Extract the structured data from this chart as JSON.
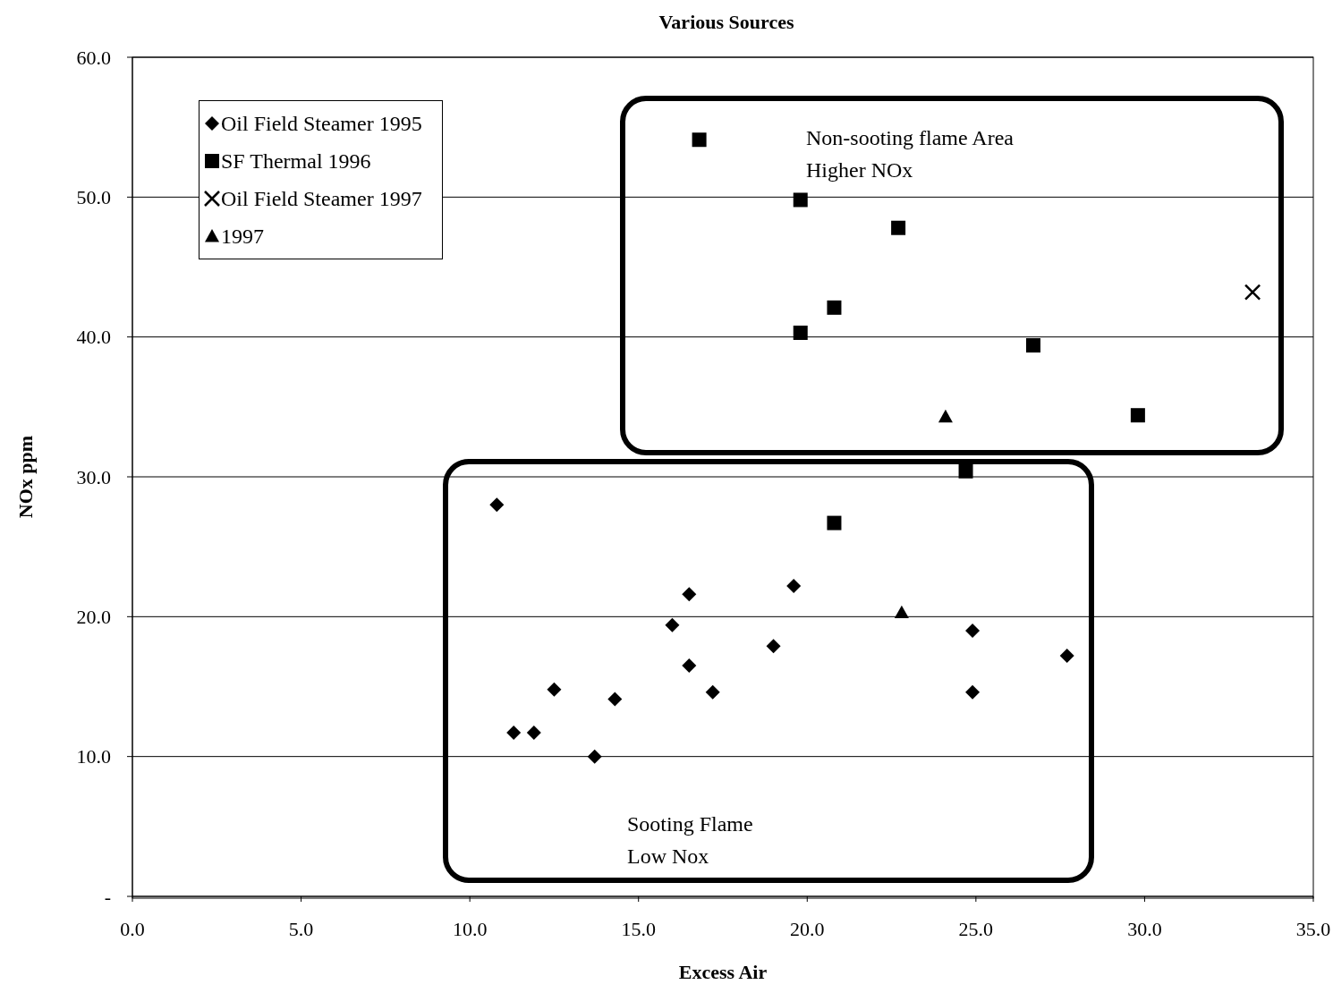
{
  "chart_data": {
    "type": "scatter",
    "title": "Various Sources",
    "xlabel": "Excess Air",
    "ylabel": "NOx ppm",
    "xlim": [
      0,
      35
    ],
    "xticks": [
      {
        "value": 0,
        "label": "0.0"
      },
      {
        "value": 5,
        "label": "5.0"
      },
      {
        "value": 10,
        "label": "10.0"
      },
      {
        "value": 15,
        "label": "15.0"
      },
      {
        "value": 20,
        "label": "20.0"
      },
      {
        "value": 25,
        "label": "25.0"
      },
      {
        "value": 30,
        "label": "30.0"
      },
      {
        "value": 35,
        "label": "35.0"
      }
    ],
    "ylim": [
      0,
      60
    ],
    "yticks": [
      {
        "value": 0,
        "label": "-"
      },
      {
        "value": 10,
        "label": "10.0"
      },
      {
        "value": 20,
        "label": "20.0"
      },
      {
        "value": 30,
        "label": "30.0"
      },
      {
        "value": 40,
        "label": "40.0"
      },
      {
        "value": 50,
        "label": "50.0"
      },
      {
        "value": 60,
        "label": "60.0"
      }
    ],
    "grid": "y",
    "legend": "top left",
    "annotations": [
      "Non-sooting flame Area\nHigher NOx",
      "Sooting Flame\nLow Nox"
    ],
    "series": [
      {
        "name": "Oil Field Steamer 1995",
        "color": "#000000",
        "marker": "diamond",
        "x": [
          10.8,
          11.3,
          11.9,
          12.5,
          13.7,
          14.3,
          16.0,
          16.5,
          16.5,
          17.2,
          19.0,
          19.6,
          24.9,
          24.9,
          27.7
        ],
        "values": [
          28.0,
          11.7,
          11.7,
          14.8,
          10.0,
          14.1,
          19.4,
          21.6,
          16.5,
          14.6,
          17.9,
          22.2,
          19.0,
          14.6,
          17.2
        ]
      },
      {
        "name": "SF Thermal 1996",
        "color": "#000000",
        "marker": "square",
        "x": [
          16.8,
          19.8,
          22.7,
          20.8,
          19.8,
          26.7,
          29.8,
          24.7,
          20.8
        ],
        "values": [
          54.1,
          49.8,
          47.8,
          42.1,
          40.3,
          39.4,
          34.4,
          30.4,
          26.7
        ]
      },
      {
        "name": "Oil Field Steamer 1997",
        "color": "#000000",
        "marker": "cross",
        "x": [
          33.2
        ],
        "values": [
          43.2
        ]
      },
      {
        "name": "1997",
        "color": "#000000",
        "marker": "triangle",
        "x": [
          24.1,
          22.8
        ],
        "values": [
          34.3,
          20.3
        ]
      }
    ]
  }
}
